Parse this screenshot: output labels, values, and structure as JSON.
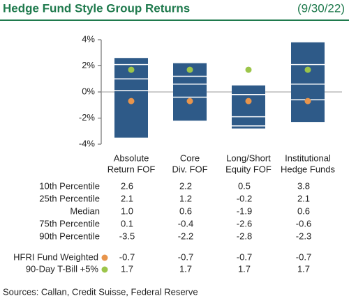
{
  "chart_data": {
    "type": "floating-bar",
    "title": "Hedge Fund Style Group Returns",
    "date": "(9/30/22)",
    "source": "Sources: Callan, Credit Suisse, Federal Reserve",
    "categories": [
      [
        "Absolute",
        "Return FOF"
      ],
      [
        "Core",
        "Div. FOF"
      ],
      [
        "Long/Short",
        "Equity FOF"
      ],
      [
        "Institutional",
        "Hedge Funds"
      ]
    ],
    "ylim": [
      -4,
      4
    ],
    "yticks": [
      {
        "value": 4,
        "label": "4%"
      },
      {
        "value": 2,
        "label": "2%"
      },
      {
        "value": 0,
        "label": "0%"
      },
      {
        "value": -2,
        "label": "-2%"
      },
      {
        "value": -4,
        "label": "-4%"
      }
    ],
    "bar_color": "#2e5a88",
    "series": [
      {
        "name": "10th Percentile",
        "values": [
          2.6,
          2.2,
          0.5,
          3.8
        ],
        "value_labels": [
          "2.6",
          "2.2",
          "0.5",
          "3.8"
        ]
      },
      {
        "name": "25th Percentile",
        "values": [
          2.1,
          1.2,
          -0.2,
          2.1
        ],
        "value_labels": [
          "2.1",
          "1.2",
          "-0.2",
          "2.1"
        ]
      },
      {
        "name": "Median",
        "values": [
          1.0,
          0.6,
          -1.9,
          0.6
        ],
        "value_labels": [
          "1.0",
          "0.6",
          "-1.9",
          "0.6"
        ]
      },
      {
        "name": "75th Percentile",
        "values": [
          0.1,
          -0.4,
          -2.6,
          -0.6
        ],
        "value_labels": [
          "0.1",
          "-0.4",
          "-2.6",
          "-0.6"
        ]
      },
      {
        "name": "90th Percentile",
        "values": [
          -3.5,
          -2.2,
          -2.8,
          -2.3
        ],
        "value_labels": [
          "-3.5",
          "-2.2",
          "-2.8",
          "-2.3"
        ]
      },
      {
        "name": "HFRI Fund Weighted",
        "color": "#e8954c",
        "values": [
          -0.7,
          -0.7,
          -0.7,
          -0.7
        ],
        "value_labels": [
          "-0.7",
          "-0.7",
          "-0.7",
          "-0.7"
        ]
      },
      {
        "name": "90-Day T-Bill +5%",
        "color": "#9cc54a",
        "values": [
          1.7,
          1.7,
          1.7,
          1.7
        ],
        "value_labels": [
          "1.7",
          "1.7",
          "1.7",
          "1.7"
        ]
      }
    ]
  }
}
